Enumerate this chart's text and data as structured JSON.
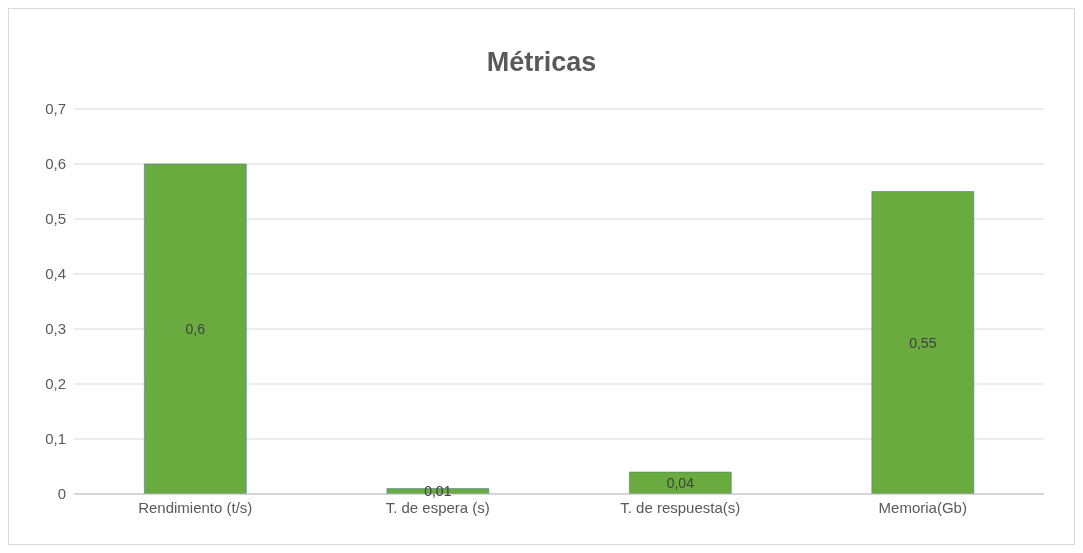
{
  "chart_data": {
    "type": "bar",
    "title": "Métricas",
    "categories": [
      "Rendimiento (t/s)",
      "T. de espera (s)",
      "T. de respuesta(s)",
      "Memoria(Gb)"
    ],
    "values": [
      0.6,
      0.01,
      0.04,
      0.55
    ],
    "value_labels": [
      "0,6",
      "0,01",
      "0,04",
      "0,55"
    ],
    "color": "#6aab3f",
    "ylim": [
      0,
      0.7
    ],
    "yticks": [
      {
        "value": 0,
        "label": "0"
      },
      {
        "value": 0.1,
        "label": "0,1"
      },
      {
        "value": 0.2,
        "label": "0,2"
      },
      {
        "value": 0.3,
        "label": "0,3"
      },
      {
        "value": 0.4,
        "label": "0,4"
      },
      {
        "value": 0.5,
        "label": "0,5"
      },
      {
        "value": 0.6,
        "label": "0,6"
      },
      {
        "value": 0.7,
        "label": "0,7"
      }
    ],
    "grid": "y"
  }
}
